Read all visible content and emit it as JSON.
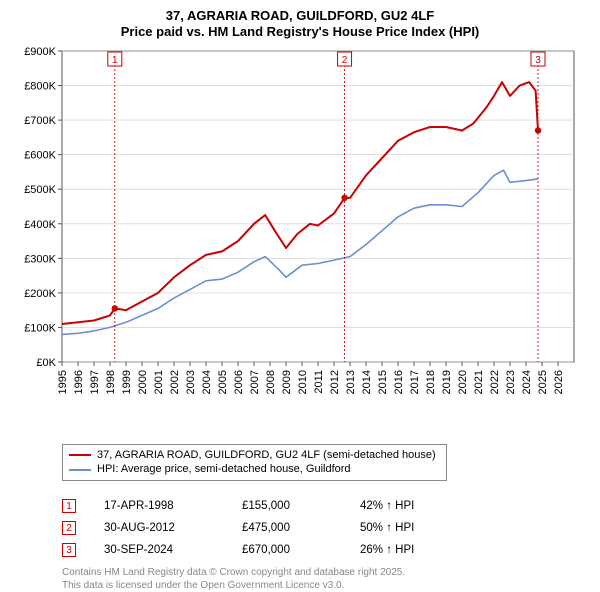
{
  "title_line1": "37, AGRARIA ROAD, GUILDFORD, GU2 4LF",
  "title_line2": "Price paid vs. HM Land Registry's House Price Index (HPI)",
  "chart": {
    "type": "line",
    "background_color": "#ffffff",
    "plot_bg_color": "#ffffff",
    "grid_color": "#cccccc",
    "axis_color": "#555555",
    "x": {
      "min": 1995,
      "max": 2027,
      "ticks": [
        1995,
        1996,
        1997,
        1998,
        1999,
        2000,
        2001,
        2002,
        2003,
        2004,
        2005,
        2006,
        2007,
        2008,
        2009,
        2010,
        2011,
        2012,
        2013,
        2014,
        2015,
        2016,
        2017,
        2018,
        2019,
        2020,
        2021,
        2022,
        2023,
        2024,
        2025,
        2026
      ]
    },
    "y": {
      "min": 0,
      "max": 900,
      "ticks": [
        0,
        100,
        200,
        300,
        400,
        500,
        600,
        700,
        800,
        900
      ],
      "tick_fmt_prefix": "£",
      "tick_fmt_suffix": "K"
    },
    "series": [
      {
        "name": "37, AGRARIA ROAD, GUILDFORD, GU2 4LF (semi-detached house)",
        "color": "#cc0000",
        "width": 2.0,
        "points": [
          [
            1995,
            110
          ],
          [
            1996,
            115
          ],
          [
            1997,
            120
          ],
          [
            1998,
            135
          ],
          [
            1998.3,
            155
          ],
          [
            1999,
            150
          ],
          [
            2000,
            175
          ],
          [
            2001,
            200
          ],
          [
            2002,
            245
          ],
          [
            2003,
            280
          ],
          [
            2004,
            310
          ],
          [
            2005,
            320
          ],
          [
            2006,
            350
          ],
          [
            2007,
            400
          ],
          [
            2007.7,
            425
          ],
          [
            2008.3,
            380
          ],
          [
            2009,
            330
          ],
          [
            2009.7,
            370
          ],
          [
            2010.5,
            400
          ],
          [
            2011,
            395
          ],
          [
            2012,
            430
          ],
          [
            2012.66,
            475
          ],
          [
            2013,
            475
          ],
          [
            2014,
            540
          ],
          [
            2015,
            590
          ],
          [
            2016,
            640
          ],
          [
            2017,
            665
          ],
          [
            2018,
            680
          ],
          [
            2019,
            680
          ],
          [
            2020,
            670
          ],
          [
            2020.7,
            690
          ],
          [
            2021.5,
            735
          ],
          [
            2022,
            770
          ],
          [
            2022.5,
            810
          ],
          [
            2023,
            770
          ],
          [
            2023.6,
            800
          ],
          [
            2024.2,
            810
          ],
          [
            2024.6,
            785
          ],
          [
            2024.75,
            670
          ]
        ]
      },
      {
        "name": "HPI: Average price, semi-detached house, Guildford",
        "color": "#6a8fd4",
        "width": 1.6,
        "points": [
          [
            1995,
            80
          ],
          [
            1996,
            83
          ],
          [
            1997,
            90
          ],
          [
            1998,
            100
          ],
          [
            1999,
            115
          ],
          [
            2000,
            135
          ],
          [
            2001,
            155
          ],
          [
            2002,
            185
          ],
          [
            2003,
            210
          ],
          [
            2004,
            235
          ],
          [
            2005,
            240
          ],
          [
            2006,
            260
          ],
          [
            2007,
            290
          ],
          [
            2007.7,
            305
          ],
          [
            2008.5,
            270
          ],
          [
            2009,
            245
          ],
          [
            2010,
            280
          ],
          [
            2011,
            285
          ],
          [
            2012,
            295
          ],
          [
            2013,
            305
          ],
          [
            2014,
            340
          ],
          [
            2015,
            380
          ],
          [
            2016,
            420
          ],
          [
            2017,
            445
          ],
          [
            2018,
            455
          ],
          [
            2019,
            455
          ],
          [
            2020,
            450
          ],
          [
            2021,
            490
          ],
          [
            2022,
            540
          ],
          [
            2022.6,
            555
          ],
          [
            2023,
            520
          ],
          [
            2024,
            525
          ],
          [
            2024.75,
            530
          ]
        ]
      }
    ],
    "event_markers": [
      {
        "n": "1",
        "x": 1998.3,
        "y_dot": 155
      },
      {
        "n": "2",
        "x": 2012.66,
        "y_dot": 475
      },
      {
        "n": "3",
        "x": 2024.75,
        "y_dot": 670
      }
    ],
    "marker_line_color": "#cc0000",
    "marker_box_border": "#cc0000",
    "marker_box_text": "#cc0000",
    "marker_dot_fill": "#cc0000"
  },
  "legend": [
    {
      "color": "#cc0000",
      "label": "37, AGRARIA ROAD, GUILDFORD, GU2 4LF (semi-detached house)"
    },
    {
      "color": "#6a8fd4",
      "label": "HPI: Average price, semi-detached house, Guildford"
    }
  ],
  "annotations": [
    {
      "n": "1",
      "date": "17-APR-1998",
      "price": "£155,000",
      "pct": "42% ↑ HPI"
    },
    {
      "n": "2",
      "date": "30-AUG-2012",
      "price": "£475,000",
      "pct": "50% ↑ HPI"
    },
    {
      "n": "3",
      "date": "30-SEP-2024",
      "price": "£670,000",
      "pct": "26% ↑ HPI"
    }
  ],
  "footer_line1": "Contains HM Land Registry data © Crown copyright and database right 2025.",
  "footer_line2": "This data is licensed under the Open Government Licence v3.0."
}
